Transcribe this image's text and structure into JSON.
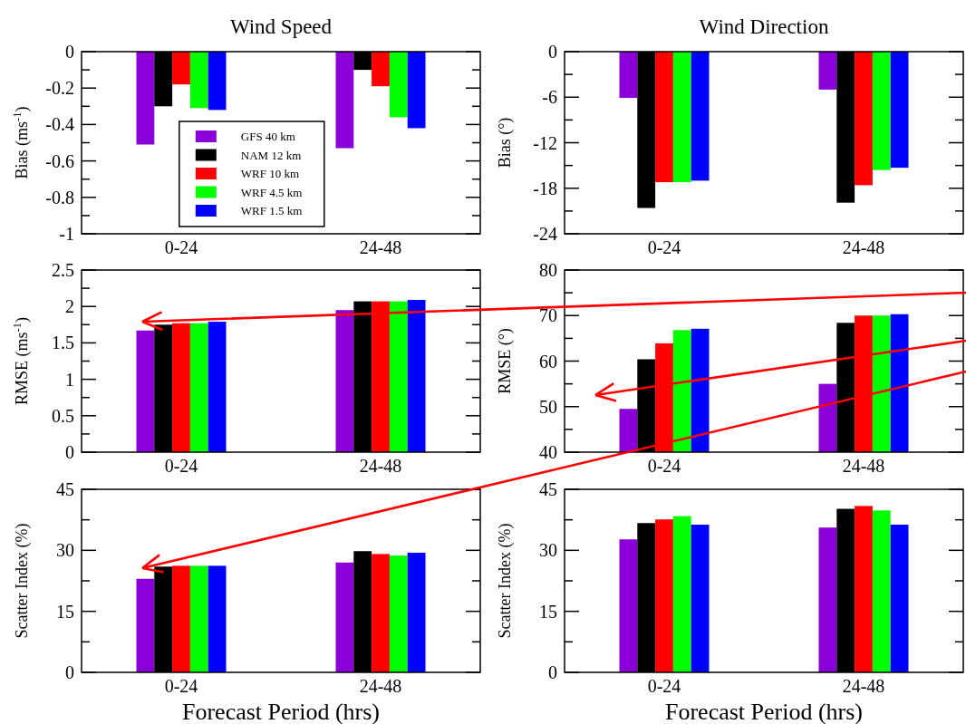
{
  "chart_data": [
    {
      "type": "bar",
      "title": "Wind Speed",
      "ylabel": "Bias (ms$^{-1}$)",
      "categories": [
        "0-24",
        "24-48"
      ],
      "legend": "bottom left",
      "ylim": [
        -1,
        0
      ],
      "yticks": [
        -1,
        {
          "value": -0.9,
          "label": null
        },
        -0.8,
        {
          "value": -0.7,
          "label": null
        },
        -0.6,
        {
          "value": -0.5,
          "label": null
        },
        -0.4,
        {
          "value": -0.3,
          "label": null
        },
        -0.2,
        {
          "value": -0.1,
          "label": null
        },
        0
      ],
      "series": [
        {
          "name": "GFS 40 km",
          "color": "#8b00d8",
          "values": [
            -0.51,
            -0.53
          ]
        },
        {
          "name": "NAM 12 km",
          "color": "#000000",
          "values": [
            -0.3,
            -0.1
          ]
        },
        {
          "name": "WRF 10 km",
          "color": "#ff0000",
          "values": [
            -0.18,
            -0.19
          ]
        },
        {
          "name": "WRF 4.5 km",
          "color": "#00ff00",
          "values": [
            -0.31,
            -0.36
          ]
        },
        {
          "name": "WRF 1.5 km",
          "color": "#0000ff",
          "values": [
            -0.32,
            -0.42
          ]
        }
      ]
    },
    {
      "type": "bar",
      "title": "Wind Direction",
      "ylabel": "Bias (°)",
      "categories": [
        "0-24",
        "24-48"
      ],
      "ylim": [
        -24,
        0
      ],
      "yticks": [
        -24,
        {
          "value": -21,
          "label": null
        },
        -18,
        {
          "value": -15,
          "label": null
        },
        -12,
        {
          "value": -9,
          "label": null
        },
        -6,
        {
          "value": -3,
          "label": null
        },
        0
      ],
      "series": [
        {
          "color": "#8b00d8",
          "values": [
            -6.1,
            -5.0
          ]
        },
        {
          "color": "#000000",
          "values": [
            -20.6,
            -19.9
          ]
        },
        {
          "color": "#ff0000",
          "values": [
            -17.2,
            -17.6
          ]
        },
        {
          "color": "#00ff00",
          "values": [
            -17.2,
            -15.6
          ]
        },
        {
          "color": "#0000ff",
          "values": [
            -17.0,
            -15.3
          ]
        }
      ]
    },
    {
      "type": "bar",
      "ylabel": "RMSE (ms$^{-1}$)",
      "categories": [
        "0-24",
        "24-48"
      ],
      "ylim": [
        0,
        2.5
      ],
      "yticks": [
        0,
        {
          "value": 0.25,
          "label": null
        },
        0.5,
        {
          "value": 0.75,
          "label": null
        },
        1,
        {
          "value": 1.25,
          "label": null
        },
        1.5,
        {
          "value": 1.75,
          "label": null
        },
        2,
        {
          "value": 2.25,
          "label": null
        },
        2.5
      ],
      "series": [
        {
          "color": "#8b00d8",
          "values": [
            1.67,
            1.95
          ]
        },
        {
          "color": "#000000",
          "values": [
            1.75,
            2.07
          ]
        },
        {
          "color": "#ff0000",
          "values": [
            1.77,
            2.07
          ]
        },
        {
          "color": "#00ff00",
          "values": [
            1.77,
            2.07
          ]
        },
        {
          "color": "#0000ff",
          "values": [
            1.79,
            2.09
          ]
        }
      ]
    },
    {
      "type": "bar",
      "ylabel": "RMSE (°)",
      "categories": [
        "0-24",
        "24-48"
      ],
      "ylim": [
        40,
        80
      ],
      "yticks": [
        40,
        {
          "value": 45,
          "label": null
        },
        50,
        {
          "value": 55,
          "label": null
        },
        60,
        {
          "value": 65,
          "label": null
        },
        70,
        {
          "value": 75,
          "label": null
        },
        80
      ],
      "series": [
        {
          "color": "#8b00d8",
          "values": [
            49.5,
            55
          ]
        },
        {
          "color": "#000000",
          "values": [
            60.4,
            68.4
          ]
        },
        {
          "color": "#ff0000",
          "values": [
            63.9,
            70
          ]
        },
        {
          "color": "#00ff00",
          "values": [
            66.8,
            70
          ]
        },
        {
          "color": "#0000ff",
          "values": [
            67.1,
            70.3
          ]
        }
      ]
    },
    {
      "type": "bar",
      "xlabel": "Forecast Period (hrs)",
      "ylabel": "Scatter Index (%)",
      "categories": [
        "0-24",
        "24-48"
      ],
      "ylim": [
        0,
        45
      ],
      "yticks": [
        0,
        {
          "value": 7.5,
          "label": null
        },
        15,
        {
          "value": 22.5,
          "label": null
        },
        30,
        {
          "value": 37.5,
          "label": null
        },
        45
      ],
      "series": [
        {
          "color": "#8b00d8",
          "values": [
            23,
            27
          ]
        },
        {
          "color": "#000000",
          "values": [
            26,
            29.8
          ]
        },
        {
          "color": "#ff0000",
          "values": [
            26.2,
            29.1
          ]
        },
        {
          "color": "#00ff00",
          "values": [
            26.2,
            28.7
          ]
        },
        {
          "color": "#0000ff",
          "values": [
            26.2,
            29.4
          ]
        }
      ]
    },
    {
      "type": "bar",
      "xlabel": "Forecast Period (hrs)",
      "ylabel": "Scatter Index (%)",
      "categories": [
        "0-24",
        "24-48"
      ],
      "ylim": [
        0,
        45
      ],
      "yticks": [
        0,
        {
          "value": 7.5,
          "label": null
        },
        15,
        {
          "value": 22.5,
          "label": null
        },
        30,
        {
          "value": 37.5,
          "label": null
        },
        45
      ],
      "series": [
        {
          "color": "#8b00d8",
          "values": [
            32.7,
            35.6
          ]
        },
        {
          "color": "#000000",
          "values": [
            36.7,
            40.2
          ]
        },
        {
          "color": "#ff0000",
          "values": [
            37.6,
            40.9
          ]
        },
        {
          "color": "#00ff00",
          "values": [
            38.4,
            39.8
          ]
        },
        {
          "color": "#0000ff",
          "values": [
            36.3,
            36.3
          ]
        }
      ]
    }
  ]
}
